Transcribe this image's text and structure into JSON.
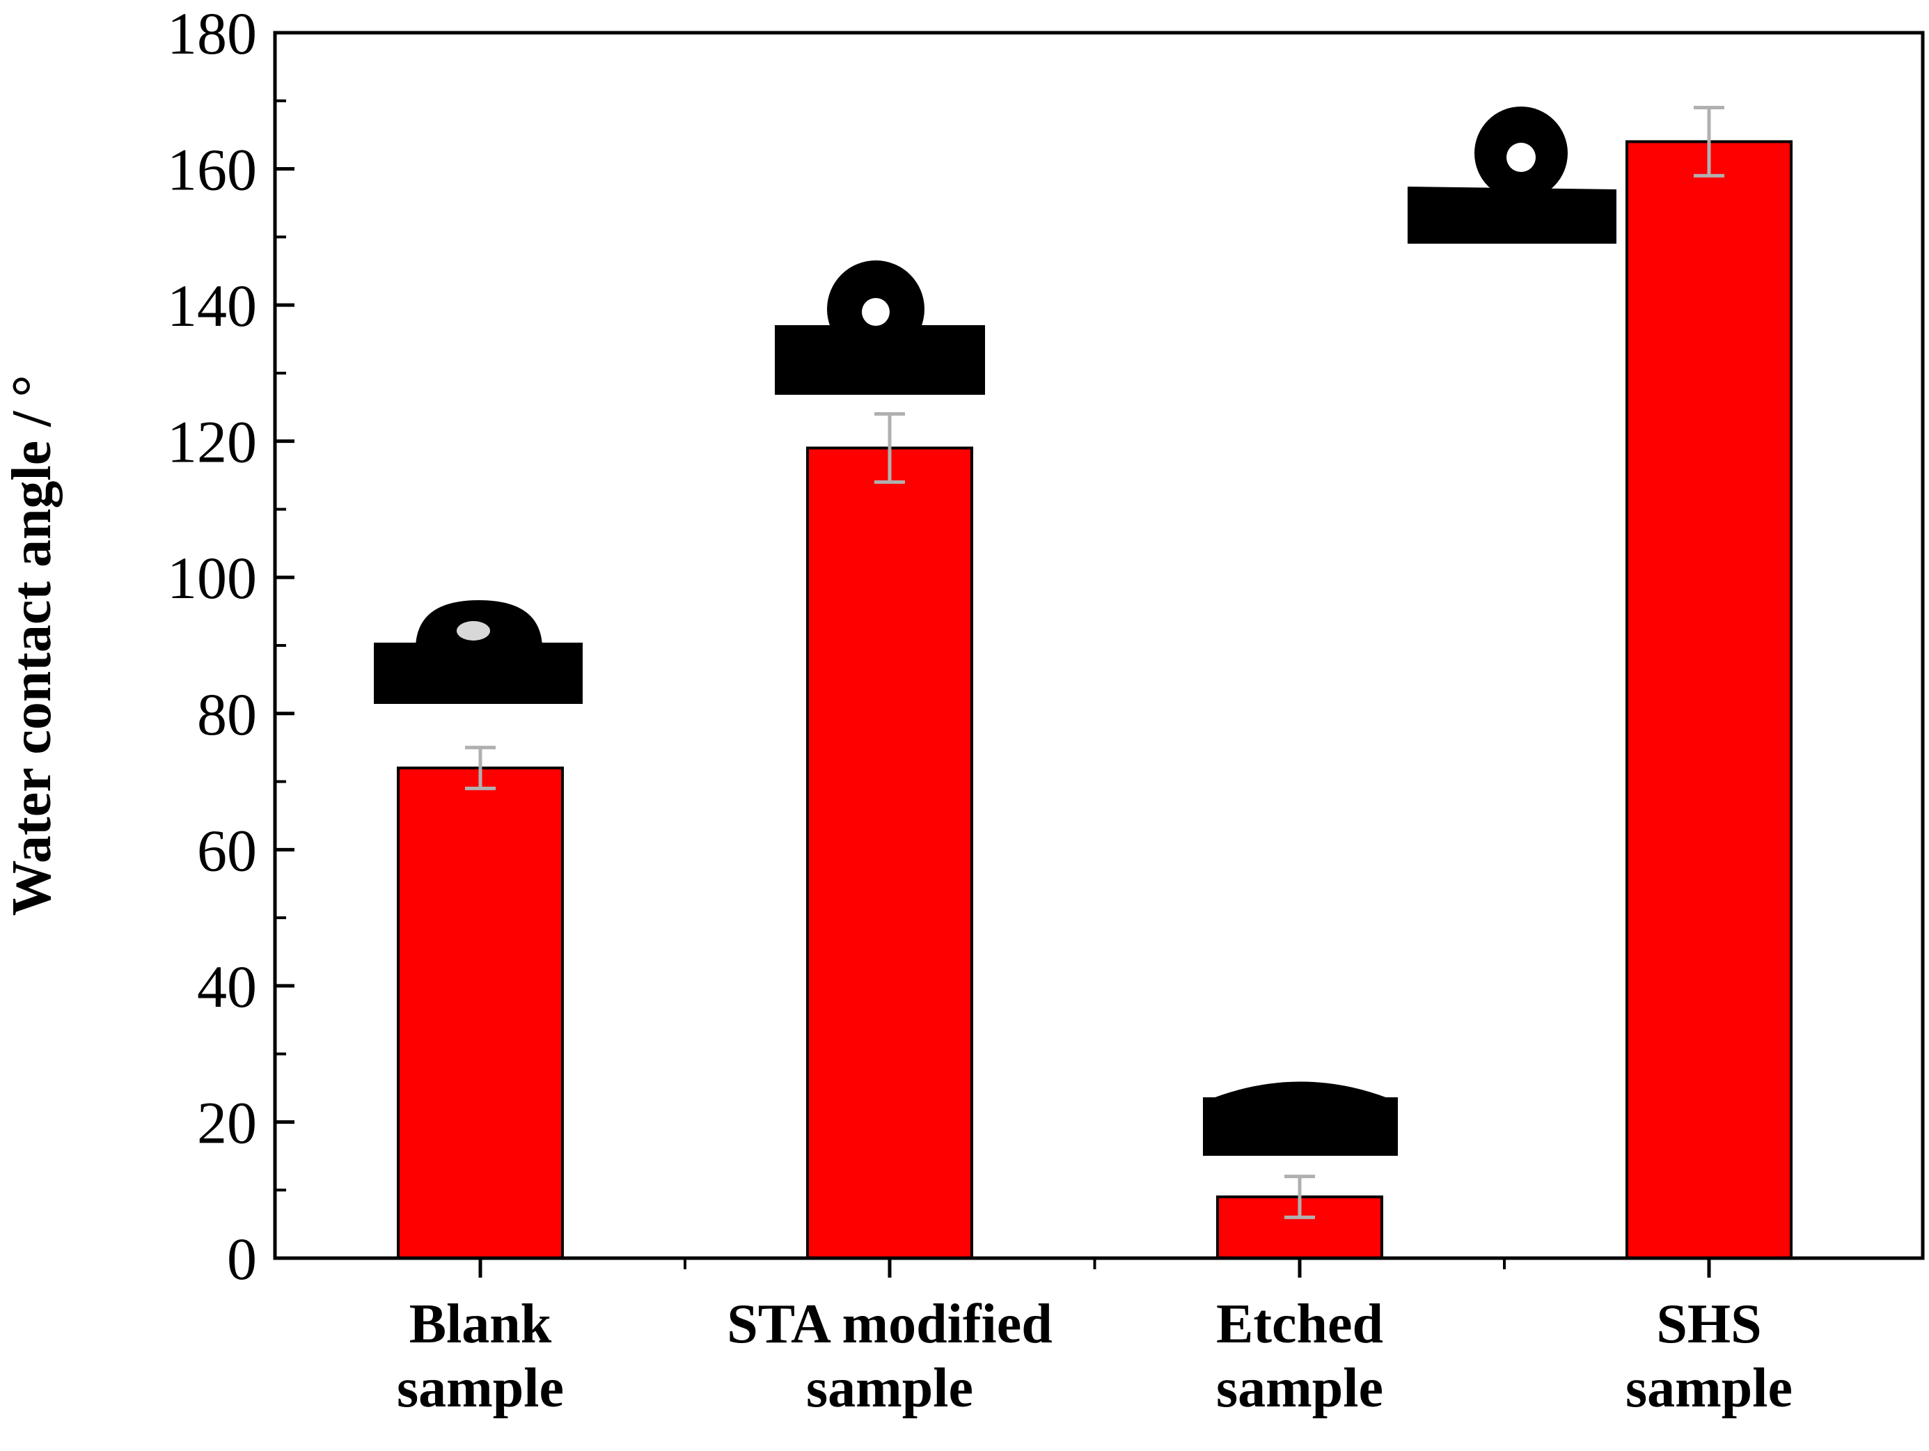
{
  "chart_data": {
    "type": "bar",
    "title": "",
    "xlabel": "",
    "ylabel": "Water contact angle / °",
    "ylim": [
      0,
      180
    ],
    "yticks": [
      0,
      20,
      40,
      60,
      80,
      100,
      120,
      140,
      160,
      180
    ],
    "categories": [
      [
        "Blank",
        "sample"
      ],
      [
        "STA modified",
        "sample"
      ],
      [
        "Etched",
        "sample"
      ],
      [
        "SHS",
        "sample"
      ]
    ],
    "values": [
      72,
      119,
      9,
      164
    ],
    "errors": [
      3,
      5,
      3,
      5
    ],
    "grid": false,
    "bar_color": "#ff0000",
    "error_bar_color": "#b0b0b0",
    "insets": [
      {
        "category": "Blank sample",
        "depicts": "water droplet on substrate",
        "contact_angle_deg": 72
      },
      {
        "category": "STA modified sample",
        "depicts": "water droplet on substrate",
        "contact_angle_deg": 119
      },
      {
        "category": "Etched sample",
        "depicts": "water droplet on substrate",
        "contact_angle_deg": 9
      },
      {
        "category": "SHS sample",
        "depicts": "water droplet on substrate",
        "contact_angle_deg": 164
      }
    ]
  }
}
